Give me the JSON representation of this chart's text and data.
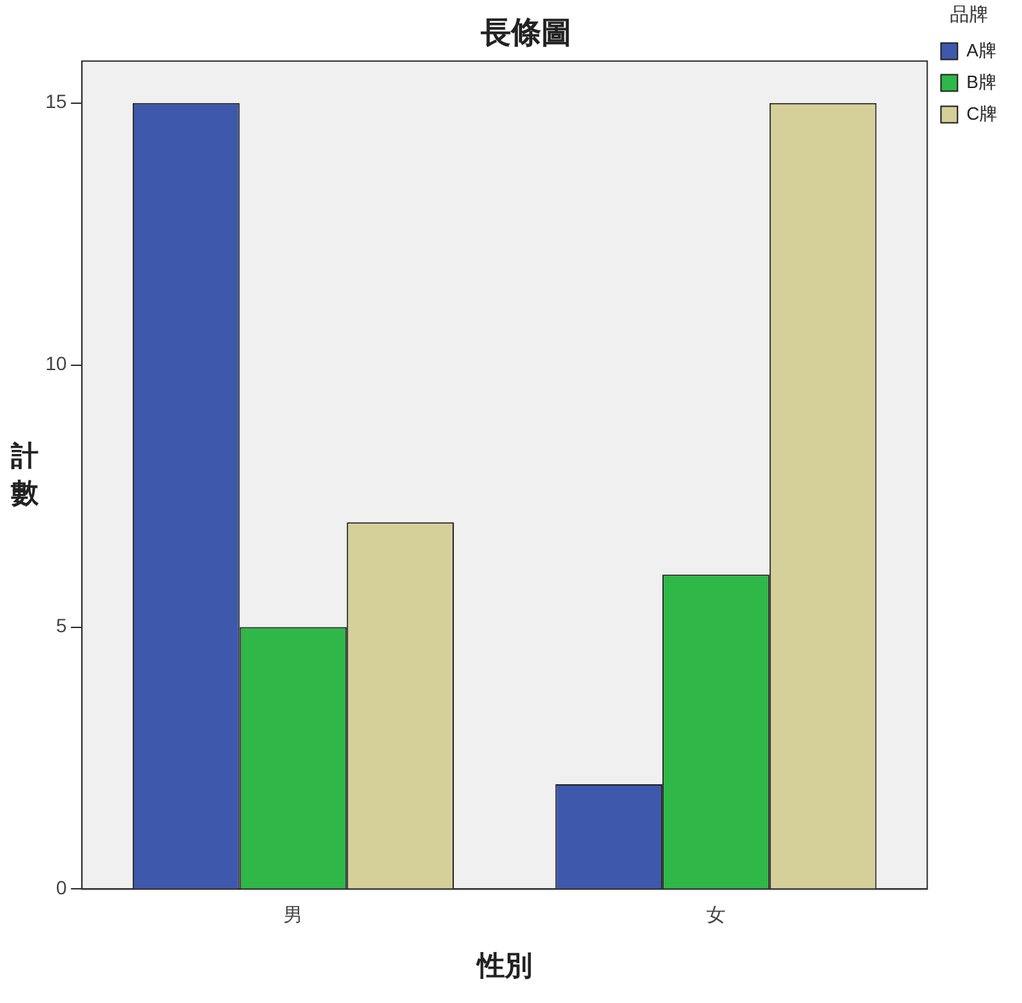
{
  "chart_data": {
    "type": "bar",
    "title": "長條圖",
    "xlabel": "性別",
    "ylabel": "計數",
    "legend_title": "品牌",
    "categories": [
      "男",
      "女"
    ],
    "series": [
      {
        "name": "A牌",
        "color": "#3e58ac",
        "values": [
          15,
          2
        ]
      },
      {
        "name": "B牌",
        "color": "#2fb847",
        "values": [
          5,
          6
        ]
      },
      {
        "name": "C牌",
        "color": "#d5d09a",
        "values": [
          7,
          15
        ]
      }
    ],
    "ylim": [
      0,
      15.8
    ],
    "yticks": [
      0,
      5,
      10,
      15
    ],
    "grid": false,
    "legend": "top right"
  }
}
